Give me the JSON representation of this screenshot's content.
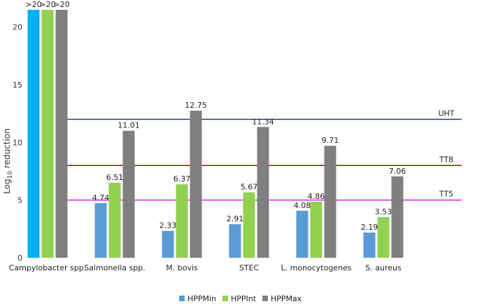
{
  "chart_data": {
    "type": "bar",
    "categories": [
      "Campylobacter spp.",
      "Salmonella spp.",
      "M. bovis",
      "STEC",
      "L. monocytogenes",
      "S. aureus"
    ],
    "series": [
      {
        "name": "HPPMin",
        "color": "#5b9bd5",
        "values": [
          21.5,
          4.74,
          2.33,
          2.91,
          4.08,
          2.19
        ],
        "labels": [
          ">20",
          "4.74",
          "2.33",
          "2.91",
          "4.08",
          "2.19"
        ]
      },
      {
        "name": "HPPInt",
        "color": "#92d050",
        "values": [
          21.5,
          6.51,
          6.37,
          5.67,
          4.86,
          3.53
        ],
        "labels": [
          ">20",
          "6.51",
          "6.37",
          "5.67",
          "4.86",
          "3.53"
        ]
      },
      {
        "name": "HPPMax",
        "color": "#7f7f7f",
        "values": [
          21.5,
          11.01,
          12.75,
          11.34,
          9.71,
          7.06
        ],
        "labels": [
          ">20",
          "11.01",
          "12.75",
          "11.34",
          "9.71",
          "7.06"
        ]
      }
    ],
    "highlight_color": "#00b0f0",
    "ylabel_main": "Log",
    "ylabel_sub": "10",
    "ylabel_rest": " reduction",
    "ylim": [
      0,
      21.5
    ],
    "yticks": [
      0,
      5,
      10,
      15,
      20
    ],
    "reference_lines": [
      {
        "label": "UHT",
        "value": 12,
        "color": "#1f3a93"
      },
      {
        "label": "TT8",
        "value": 8,
        "color": "#c00000"
      },
      {
        "label": "TT5",
        "value": 5,
        "color": "#e020e0"
      }
    ],
    "legend_position": "bottom",
    "grid": false
  }
}
